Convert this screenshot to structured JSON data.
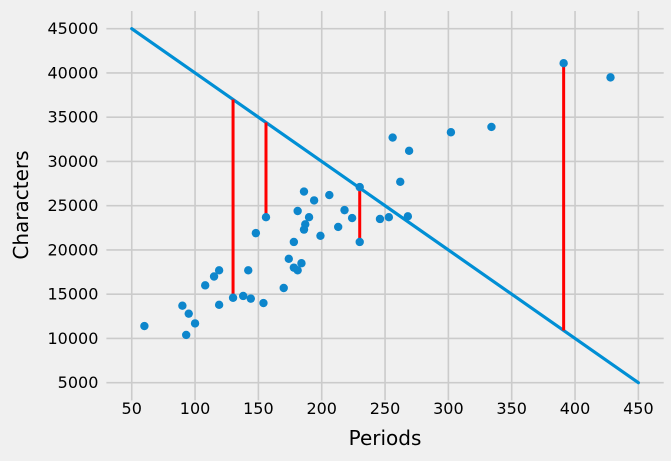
{
  "chart_data": {
    "type": "scatter",
    "title": "",
    "xlabel": "Periods",
    "ylabel": "Characters",
    "xlim": [
      30,
      470
    ],
    "ylim": [
      3000,
      47000
    ],
    "x_ticks": [
      50,
      100,
      150,
      200,
      250,
      300,
      350,
      400,
      450
    ],
    "y_ticks": [
      5000,
      10000,
      15000,
      20000,
      25000,
      30000,
      35000,
      40000,
      45000
    ],
    "grid": true,
    "legend": "none",
    "points": [
      [
        60,
        11400
      ],
      [
        90,
        13700
      ],
      [
        93,
        10400
      ],
      [
        95,
        12800
      ],
      [
        100,
        11700
      ],
      [
        108,
        16000
      ],
      [
        115,
        17000
      ],
      [
        119,
        13800
      ],
      [
        119,
        17700
      ],
      [
        130,
        14600
      ],
      [
        138,
        14800
      ],
      [
        142,
        17700
      ],
      [
        144,
        14500
      ],
      [
        148,
        21900
      ],
      [
        154,
        14000
      ],
      [
        156,
        23700
      ],
      [
        170,
        15700
      ],
      [
        174,
        19000
      ],
      [
        178,
        18000
      ],
      [
        178,
        20900
      ],
      [
        181,
        17700
      ],
      [
        181,
        24400
      ],
      [
        184,
        18500
      ],
      [
        186,
        22300
      ],
      [
        186,
        26600
      ],
      [
        187,
        22900
      ],
      [
        190,
        23700
      ],
      [
        194,
        25600
      ],
      [
        199,
        21600
      ],
      [
        206,
        26200
      ],
      [
        213,
        22600
      ],
      [
        218,
        24500
      ],
      [
        224,
        23600
      ],
      [
        230,
        20900
      ],
      [
        230,
        27100
      ],
      [
        246,
        23500
      ],
      [
        253,
        23700
      ],
      [
        256,
        32700
      ],
      [
        262,
        27700
      ],
      [
        268,
        23800
      ],
      [
        269,
        31200
      ],
      [
        302,
        33300
      ],
      [
        334,
        33900
      ],
      [
        391,
        41100
      ],
      [
        428,
        39500
      ]
    ],
    "fit_line": {
      "x1": 50,
      "y1": 45000,
      "x2": 450,
      "y2": 5000,
      "equation": "y = 50000 - 100x"
    },
    "residual_segments": [
      {
        "x": 130,
        "y_point": 14600,
        "y_line": 37000
      },
      {
        "x": 156,
        "y_point": 23700,
        "y_line": 34400
      },
      {
        "x": 230,
        "y_point": 20900,
        "y_line": 27000
      },
      {
        "x": 391,
        "y_point": 41100,
        "y_line": 10900
      }
    ]
  },
  "colors": {
    "background": "#f0f0f0",
    "gridline": "#cbcbcb",
    "text": "#000000",
    "fit_line": "#008fd5",
    "point": "#0d86cc",
    "residual": "#ff0000"
  }
}
